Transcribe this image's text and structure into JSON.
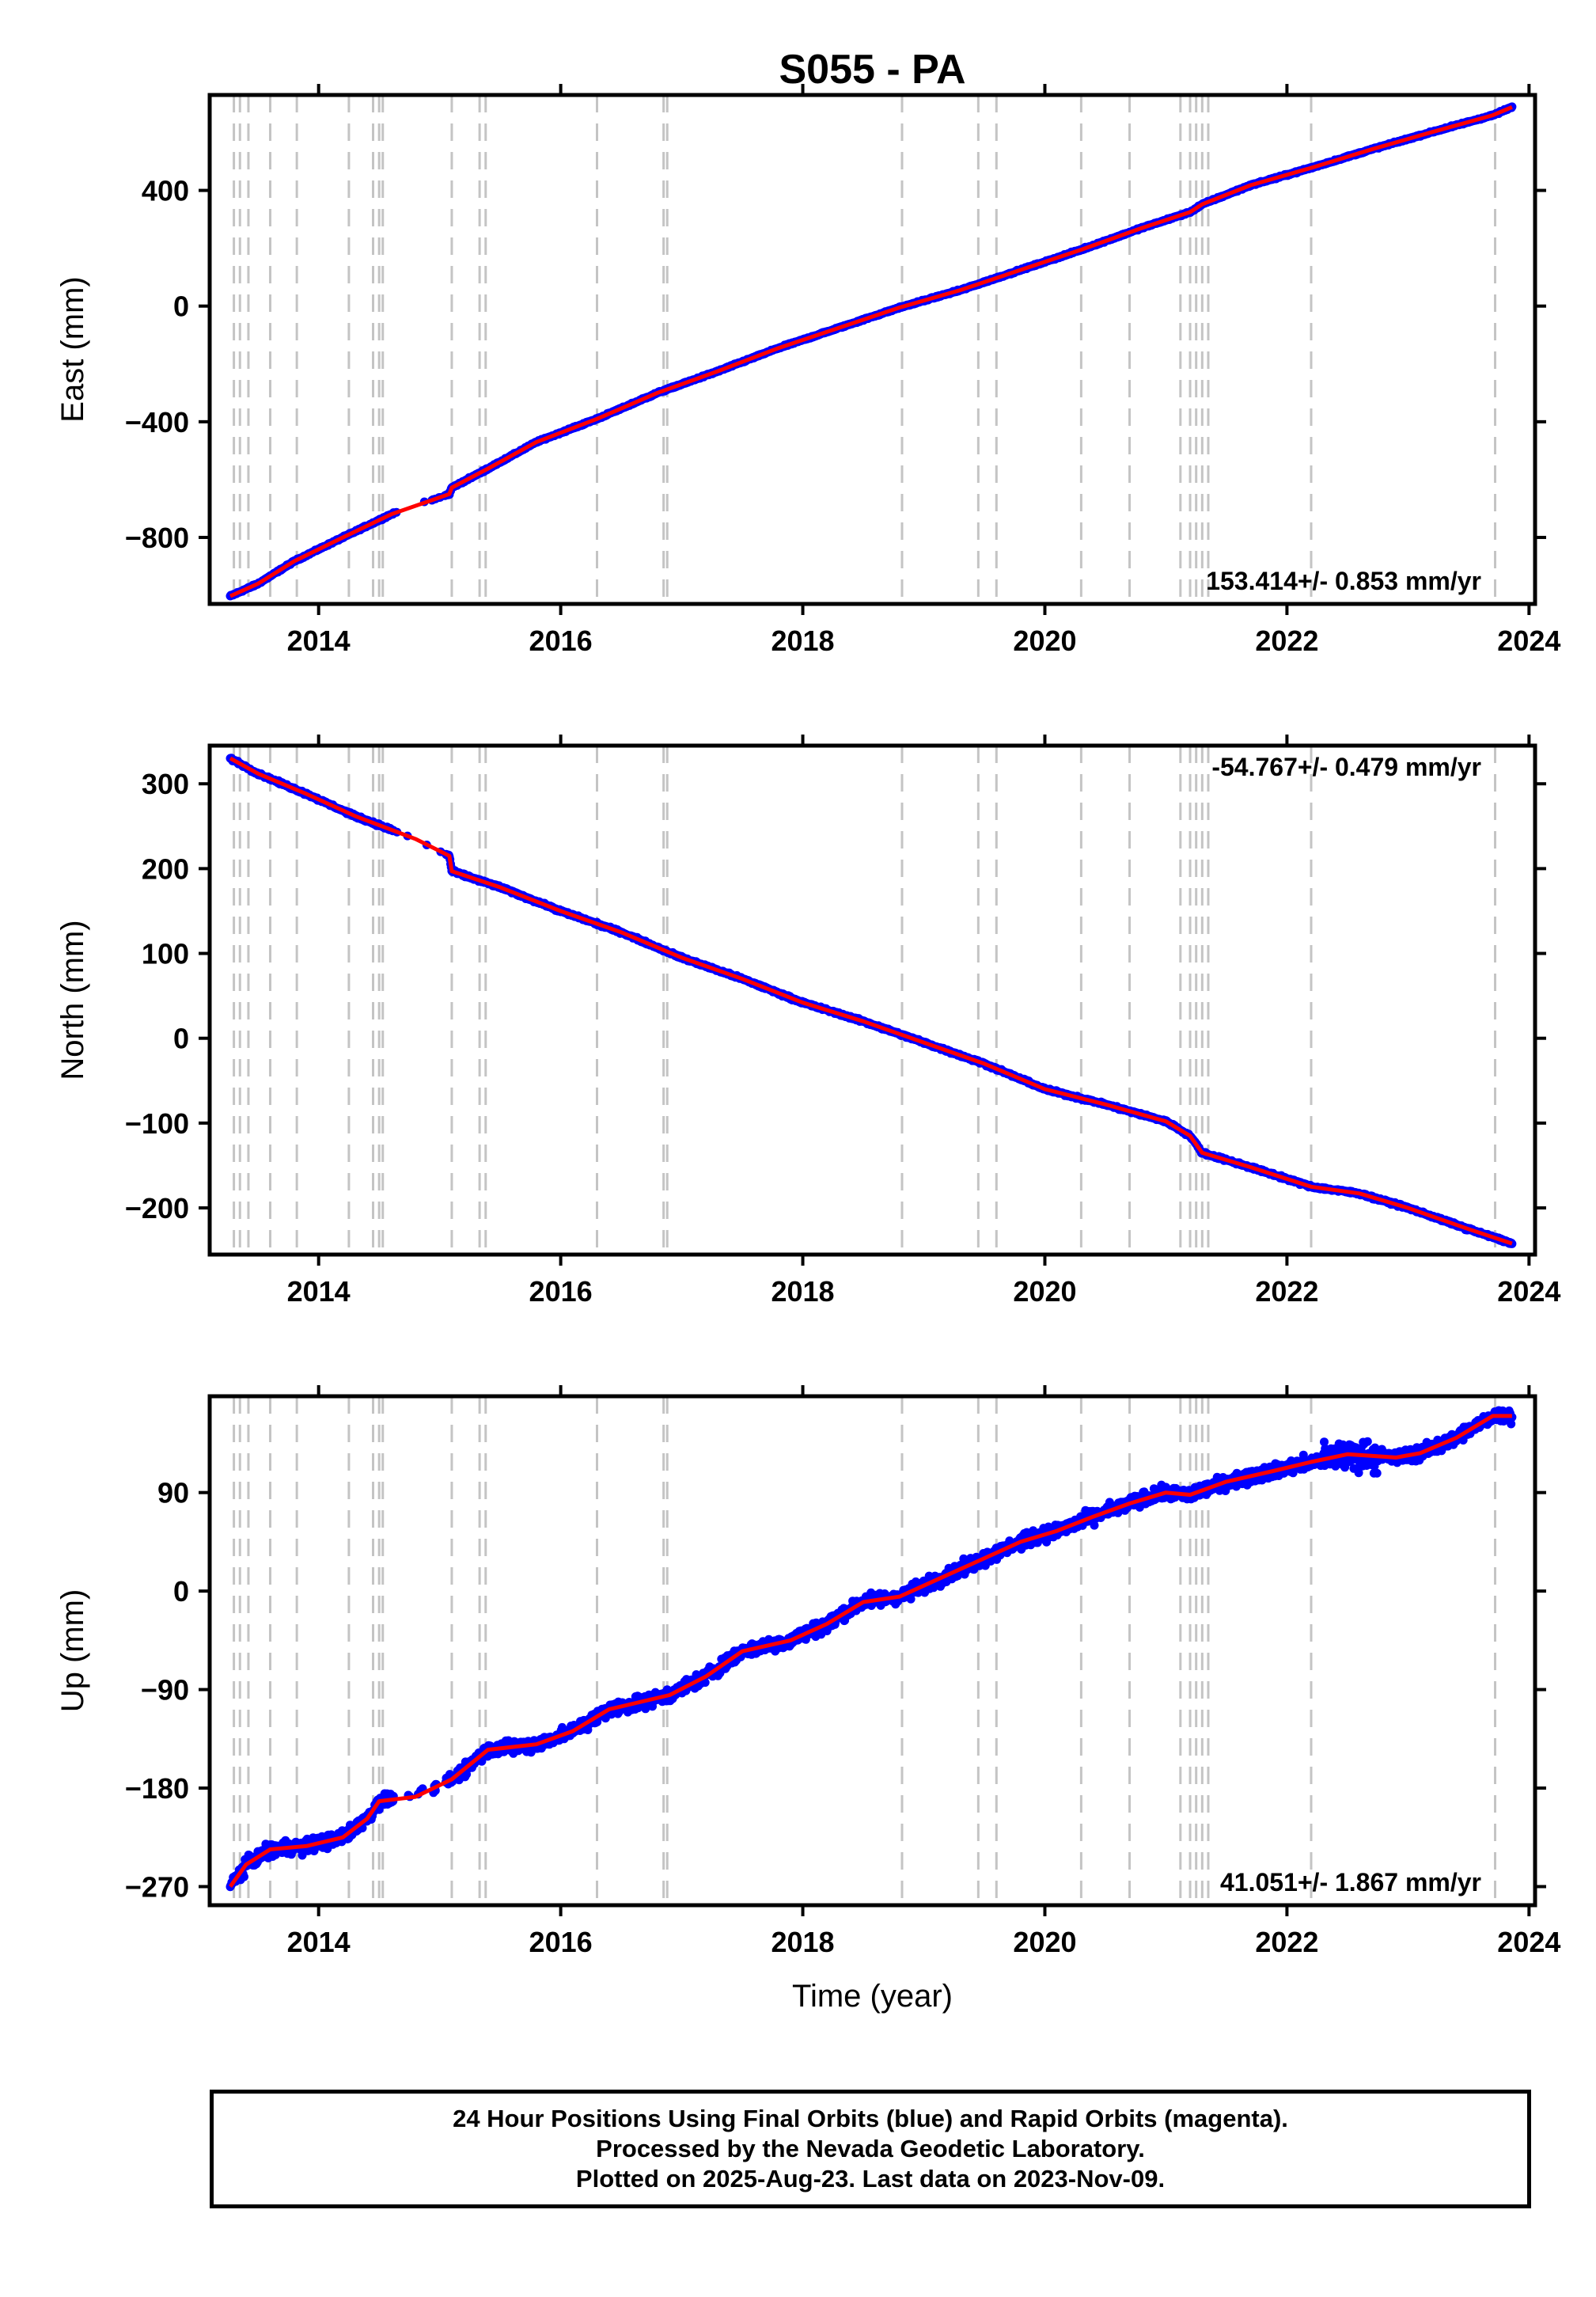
{
  "chart_data": [
    {
      "type": "scatter",
      "title": "S055 - PA",
      "xlabel": "",
      "ylabel": "East (mm)",
      "xlim": [
        2013.1,
        2024.05
      ],
      "ylim": [
        -1030,
        730
      ],
      "yticks": [
        400,
        0,
        -400,
        -800
      ],
      "ytick_labels": [
        "400",
        "0",
        "-400",
        "-800"
      ],
      "xticks": [
        2014,
        2016,
        2018,
        2020,
        2022,
        2024
      ],
      "xtick_labels": [
        "2014",
        "2016",
        "2018",
        "2020",
        "2022",
        "2024"
      ],
      "rate_text": "153.414+/- 0.853 mm/yr",
      "grid": false,
      "x": [
        2013.27,
        2013.5,
        2013.8,
        2014.2,
        2014.6,
        2015.08,
        2015.1,
        2015.4,
        2015.8,
        2016.3,
        2016.8,
        2017.3,
        2017.8,
        2018.3,
        2018.8,
        2019.3,
        2019.8,
        2020.3,
        2020.8,
        2021.2,
        2021.3,
        2021.7,
        2022.2,
        2022.7,
        2023.2,
        2023.7,
        2023.86
      ],
      "y": [
        -1003,
        -960,
        -882,
        -800,
        -720,
        -650,
        -628,
        -562,
        -470,
        -390,
        -300,
        -225,
        -145,
        -75,
        -5,
        55,
        125,
        195,
        270,
        325,
        352,
        418,
        478,
        542,
        602,
        660,
        688
      ],
      "series": [
        {
          "name": "",
          "kind": "points",
          "color": "#0000ff"
        },
        {
          "name": "",
          "kind": "trend",
          "color": "#ff0000"
        }
      ]
    },
    {
      "type": "scatter",
      "title": "",
      "xlabel": "",
      "ylabel": "North (mm)",
      "xlim": [
        2013.1,
        2024.05
      ],
      "ylim": [
        -255,
        345
      ],
      "yticks": [
        300,
        200,
        100,
        0,
        -100,
        -200
      ],
      "ytick_labels": [
        "300",
        "200",
        "100",
        "0",
        "-100",
        "-200"
      ],
      "xticks": [
        2014,
        2016,
        2018,
        2020,
        2022,
        2024
      ],
      "xtick_labels": [
        "2014",
        "2016",
        "2018",
        "2020",
        "2022",
        "2024"
      ],
      "rate_text": "-54.767+/- 0.479 mm/yr",
      "grid": false,
      "x": [
        2013.27,
        2013.5,
        2013.9,
        2014.3,
        2014.8,
        2015.08,
        2015.1,
        2015.5,
        2016.0,
        2016.5,
        2017.0,
        2017.5,
        2018.0,
        2018.5,
        2019.0,
        2019.5,
        2020.0,
        2020.5,
        2021.0,
        2021.2,
        2021.3,
        2021.7,
        2022.2,
        2022.6,
        2023.0,
        2023.5,
        2023.86
      ],
      "y": [
        330,
        312,
        288,
        262,
        235,
        215,
        197,
        178,
        150,
        125,
        95,
        70,
        42,
        20,
        -5,
        -30,
        -60,
        -78,
        -98,
        -115,
        -135,
        -152,
        -175,
        -183,
        -200,
        -225,
        -242
      ],
      "series": [
        {
          "name": "",
          "kind": "points",
          "color": "#0000ff"
        },
        {
          "name": "",
          "kind": "trend",
          "color": "#ff0000"
        }
      ]
    },
    {
      "type": "scatter",
      "title": "",
      "xlabel": "Time (year)",
      "ylabel": "Up (mm)",
      "xlim": [
        2013.1,
        2024.05
      ],
      "ylim": [
        -287,
        178
      ],
      "yticks": [
        90,
        0,
        -90,
        -180,
        -270
      ],
      "ytick_labels": [
        "90",
        "0",
        "-90",
        "-180",
        "-270"
      ],
      "xticks": [
        2014,
        2016,
        2018,
        2020,
        2022,
        2024
      ],
      "xtick_labels": [
        "2014",
        "2016",
        "2018",
        "2020",
        "2022",
        "2024"
      ],
      "rate_text": "41.051+/- 1.867 mm/yr",
      "grid": false,
      "x": [
        2013.27,
        2013.4,
        2013.6,
        2013.9,
        2014.2,
        2014.4,
        2014.5,
        2014.8,
        2015.1,
        2015.4,
        2015.8,
        2016.1,
        2016.4,
        2016.9,
        2017.2,
        2017.5,
        2017.9,
        2018.2,
        2018.5,
        2018.8,
        2019.1,
        2019.4,
        2019.8,
        2020.1,
        2020.4,
        2020.7,
        2021.0,
        2021.2,
        2021.5,
        2021.9,
        2022.2,
        2022.5,
        2022.9,
        2023.1,
        2023.4,
        2023.7,
        2023.86
      ],
      "y": [
        -270,
        -250,
        -236,
        -233,
        -225,
        -208,
        -192,
        -188,
        -172,
        -145,
        -140,
        -128,
        -108,
        -95,
        -78,
        -55,
        -45,
        -30,
        -10,
        -5,
        10,
        25,
        45,
        55,
        68,
        80,
        90,
        88,
        100,
        110,
        118,
        125,
        122,
        126,
        140,
        160,
        160
      ],
      "series": [
        {
          "name": "",
          "kind": "points",
          "color": "#0000ff"
        },
        {
          "name": "",
          "kind": "trend",
          "color": "#ff0000"
        }
      ]
    }
  ],
  "event_lines": [
    2013.3,
    2013.35,
    2013.42,
    2013.6,
    2013.82,
    2014.25,
    2014.45,
    2014.5,
    2014.53,
    2015.1,
    2015.33,
    2015.38,
    2016.3,
    2016.85,
    2016.88,
    2018.82,
    2019.45,
    2019.6,
    2020.3,
    2020.7,
    2021.12,
    2021.2,
    2021.25,
    2021.3,
    2021.35,
    2022.2,
    2023.72
  ],
  "footer": {
    "line1": "24 Hour Positions Using Final Orbits (blue) and Rapid Orbits (magenta).",
    "line2": "Processed by the Nevada Geodetic Laboratory.",
    "line3": "Plotted on 2025-Aug-23. Last data on 2023-Nov-09."
  },
  "colors": {
    "points": "#0000ff",
    "trend": "#ff0000",
    "event": "#c4c4c4",
    "frame": "#000000"
  }
}
